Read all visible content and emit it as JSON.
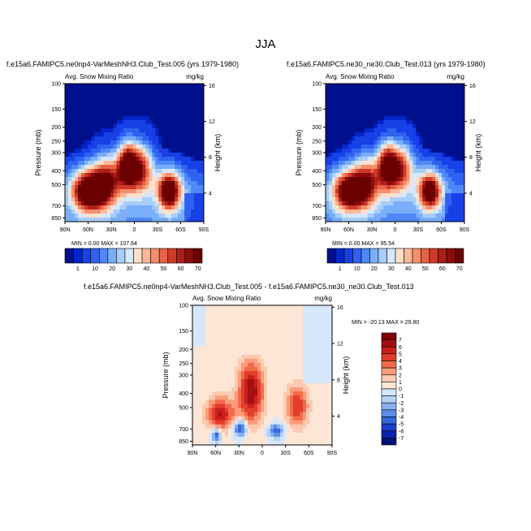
{
  "figure": {
    "title": "JJA"
  },
  "chart_data": [
    {
      "type": "heatmap",
      "title": "f.e15a6.FAMIPC5.ne0np4-VarMeshNH3.Club_Test.005 (yrs 1979-1980)",
      "subtitle_left": "Avg. Snow Mixing Ratio",
      "units": "mg/kg",
      "ylabel": "Pressure (mb)",
      "ylabel_right": "Height (km)",
      "x_ticks": [
        "90N",
        "60N",
        "30N",
        "0",
        "30S",
        "60S",
        "90S"
      ],
      "y_ticks": [
        "100",
        "150",
        "200",
        "250",
        "300",
        "400",
        "500",
        "700",
        "850"
      ],
      "y_right_ticks": [
        "16",
        "12",
        "8",
        "4"
      ],
      "stats": {
        "min_label": "MIN =",
        "min": "0.00",
        "max_label": "MAX =",
        "max": "107.64"
      },
      "colorbar_levels": [
        "1",
        "10",
        "20",
        "30",
        "40",
        "50",
        "60",
        "70"
      ]
    },
    {
      "type": "heatmap",
      "title": "f.e15a6.FAMIPC5.ne30_ne30.Club_Test.013 (yrs 1979-1980)",
      "subtitle_left": "Avg. Snow Mixing Ratio",
      "units": "mg/kg",
      "ylabel": "Pressure (mb)",
      "ylabel_right": "Height (km)",
      "x_ticks": [
        "90N",
        "60N",
        "30N",
        "0",
        "30S",
        "60S",
        "90S"
      ],
      "y_ticks": [
        "100",
        "150",
        "200",
        "250",
        "300",
        "400",
        "500",
        "700",
        "850"
      ],
      "y_right_ticks": [
        "16",
        "12",
        "8",
        "4"
      ],
      "stats": {
        "min_label": "MIN =",
        "min": "0.00",
        "max_label": "MAX =",
        "max": "95.54"
      },
      "colorbar_levels": [
        "1",
        "10",
        "20",
        "30",
        "40",
        "50",
        "60",
        "70"
      ]
    },
    {
      "type": "heatmap",
      "title": "f.e15a6.FAMIPC5.ne0np4-VarMeshNH3.Club_Test.005 - f.e15a6.FAMIPC5.ne30_ne30.Club_Test.013",
      "subtitle_left": "Avg. Snow Mixing Ratio",
      "units": "mg/kg",
      "ylabel": "Pressure (mb)",
      "ylabel_right": "Height (km)",
      "x_ticks": [
        "90N",
        "60N",
        "30N",
        "0",
        "30S",
        "60S",
        "90S"
      ],
      "y_ticks": [
        "100",
        "150",
        "200",
        "250",
        "300",
        "400",
        "500",
        "700",
        "850"
      ],
      "y_right_ticks": [
        "16",
        "12",
        "8",
        "4"
      ],
      "stats": {
        "min_label": "MIN =",
        "min": "-20.13",
        "max_label": "MAX =",
        "max": "29.80"
      },
      "colorbar_levels": [
        "7",
        "6",
        "5",
        "4",
        "3",
        "2",
        "1",
        "0",
        "-1",
        "-2",
        "-3",
        "-4",
        "-5",
        "-6",
        "-7"
      ]
    }
  ]
}
